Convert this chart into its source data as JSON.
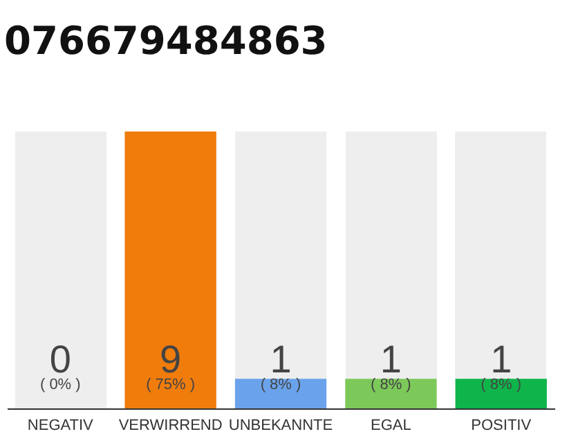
{
  "chart_data": {
    "type": "bar",
    "title": "076679484863",
    "categories": [
      "NEGATIV",
      "VERWIRREND",
      "UNBEKANNTE",
      "EGAL",
      "POSITIV"
    ],
    "values": [
      0,
      75,
      8,
      8,
      8
    ],
    "colors": [
      "#999999",
      "#f07c0c",
      "#6aa3ec",
      "#7cc95a",
      "#0fb54a"
    ],
    "value_labels": [
      "( 0% )",
      "( 75% )",
      "( 8% )",
      "( 8% )",
      "( 8% )"
    ],
    "annotations": [
      "0",
      "9",
      "1",
      "1",
      "1"
    ],
    "grid": false
  }
}
